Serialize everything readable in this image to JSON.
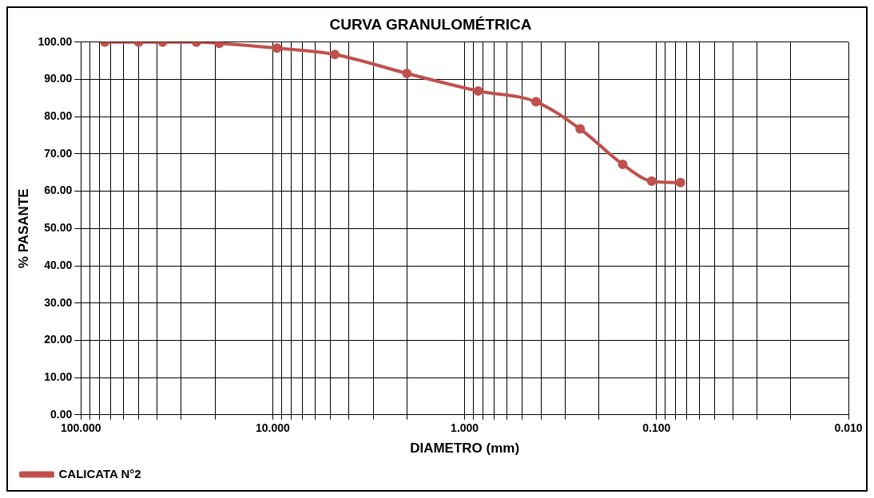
{
  "chart_data": {
    "type": "line",
    "title": "CURVA GRANULOMÉTRICA",
    "xlabel": "DIAMETRO (mm)",
    "ylabel": "% PASANTE",
    "x": [
      75,
      50,
      37.5,
      25,
      19,
      9.5,
      4.75,
      2,
      0.85,
      0.425,
      0.25,
      0.15,
      0.106,
      0.075
    ],
    "series": [
      {
        "name": "CALICATA N°2",
        "color": "#c0504d",
        "values": [
          100,
          100,
          100,
          100,
          99.7,
          98.4,
          96.7,
          91.6,
          86.9,
          84,
          76.7,
          67.2,
          62.7,
          62.3
        ]
      }
    ],
    "log": "x",
    "xlim": [
      100,
      0.01
    ],
    "xticks": [
      {
        "value": 100,
        "label": "100.000"
      },
      {
        "value": 90,
        "label": null
      },
      {
        "value": 80,
        "label": null
      },
      {
        "value": 70,
        "label": null
      },
      {
        "value": 60,
        "label": null
      },
      {
        "value": 50,
        "label": null
      },
      {
        "value": 40,
        "label": null
      },
      {
        "value": 30,
        "label": null
      },
      {
        "value": 20,
        "label": null
      },
      {
        "value": 10,
        "label": "10.000"
      },
      {
        "value": 9,
        "label": null
      },
      {
        "value": 8,
        "label": null
      },
      {
        "value": 7,
        "label": null
      },
      {
        "value": 6,
        "label": null
      },
      {
        "value": 5,
        "label": null
      },
      {
        "value": 4,
        "label": null
      },
      {
        "value": 3,
        "label": null
      },
      {
        "value": 2,
        "label": null
      },
      {
        "value": 1,
        "label": "1.000"
      },
      {
        "value": 0.9,
        "label": null
      },
      {
        "value": 0.8,
        "label": null
      },
      {
        "value": 0.7,
        "label": null
      },
      {
        "value": 0.6,
        "label": null
      },
      {
        "value": 0.5,
        "label": null
      },
      {
        "value": 0.4,
        "label": null
      },
      {
        "value": 0.3,
        "label": null
      },
      {
        "value": 0.2,
        "label": null
      },
      {
        "value": 0.1,
        "label": "0.100"
      },
      {
        "value": 0.09,
        "label": null
      },
      {
        "value": 0.08,
        "label": null
      },
      {
        "value": 0.07,
        "label": null
      },
      {
        "value": 0.06,
        "label": null
      },
      {
        "value": 0.05,
        "label": null
      },
      {
        "value": 0.04,
        "label": null
      },
      {
        "value": 0.03,
        "label": null
      },
      {
        "value": 0.02,
        "label": null
      },
      {
        "value": 0.01,
        "label": "0.010"
      }
    ],
    "ylim": [
      0,
      100
    ],
    "yticks": [
      {
        "value": 0,
        "label": "0.00"
      },
      {
        "value": 10,
        "label": "10.00"
      },
      {
        "value": 20,
        "label": "20.00"
      },
      {
        "value": 30,
        "label": "30.00"
      },
      {
        "value": 40,
        "label": "40.00"
      },
      {
        "value": 50,
        "label": "50.00"
      },
      {
        "value": 60,
        "label": "60.00"
      },
      {
        "value": 70,
        "label": "70.00"
      },
      {
        "value": 80,
        "label": "80.00"
      },
      {
        "value": 90,
        "label": "90.00"
      },
      {
        "value": 100,
        "label": "100.00"
      }
    ],
    "grid": true,
    "legend": "bottom left",
    "marker": "circle",
    "line_style": "solid"
  }
}
